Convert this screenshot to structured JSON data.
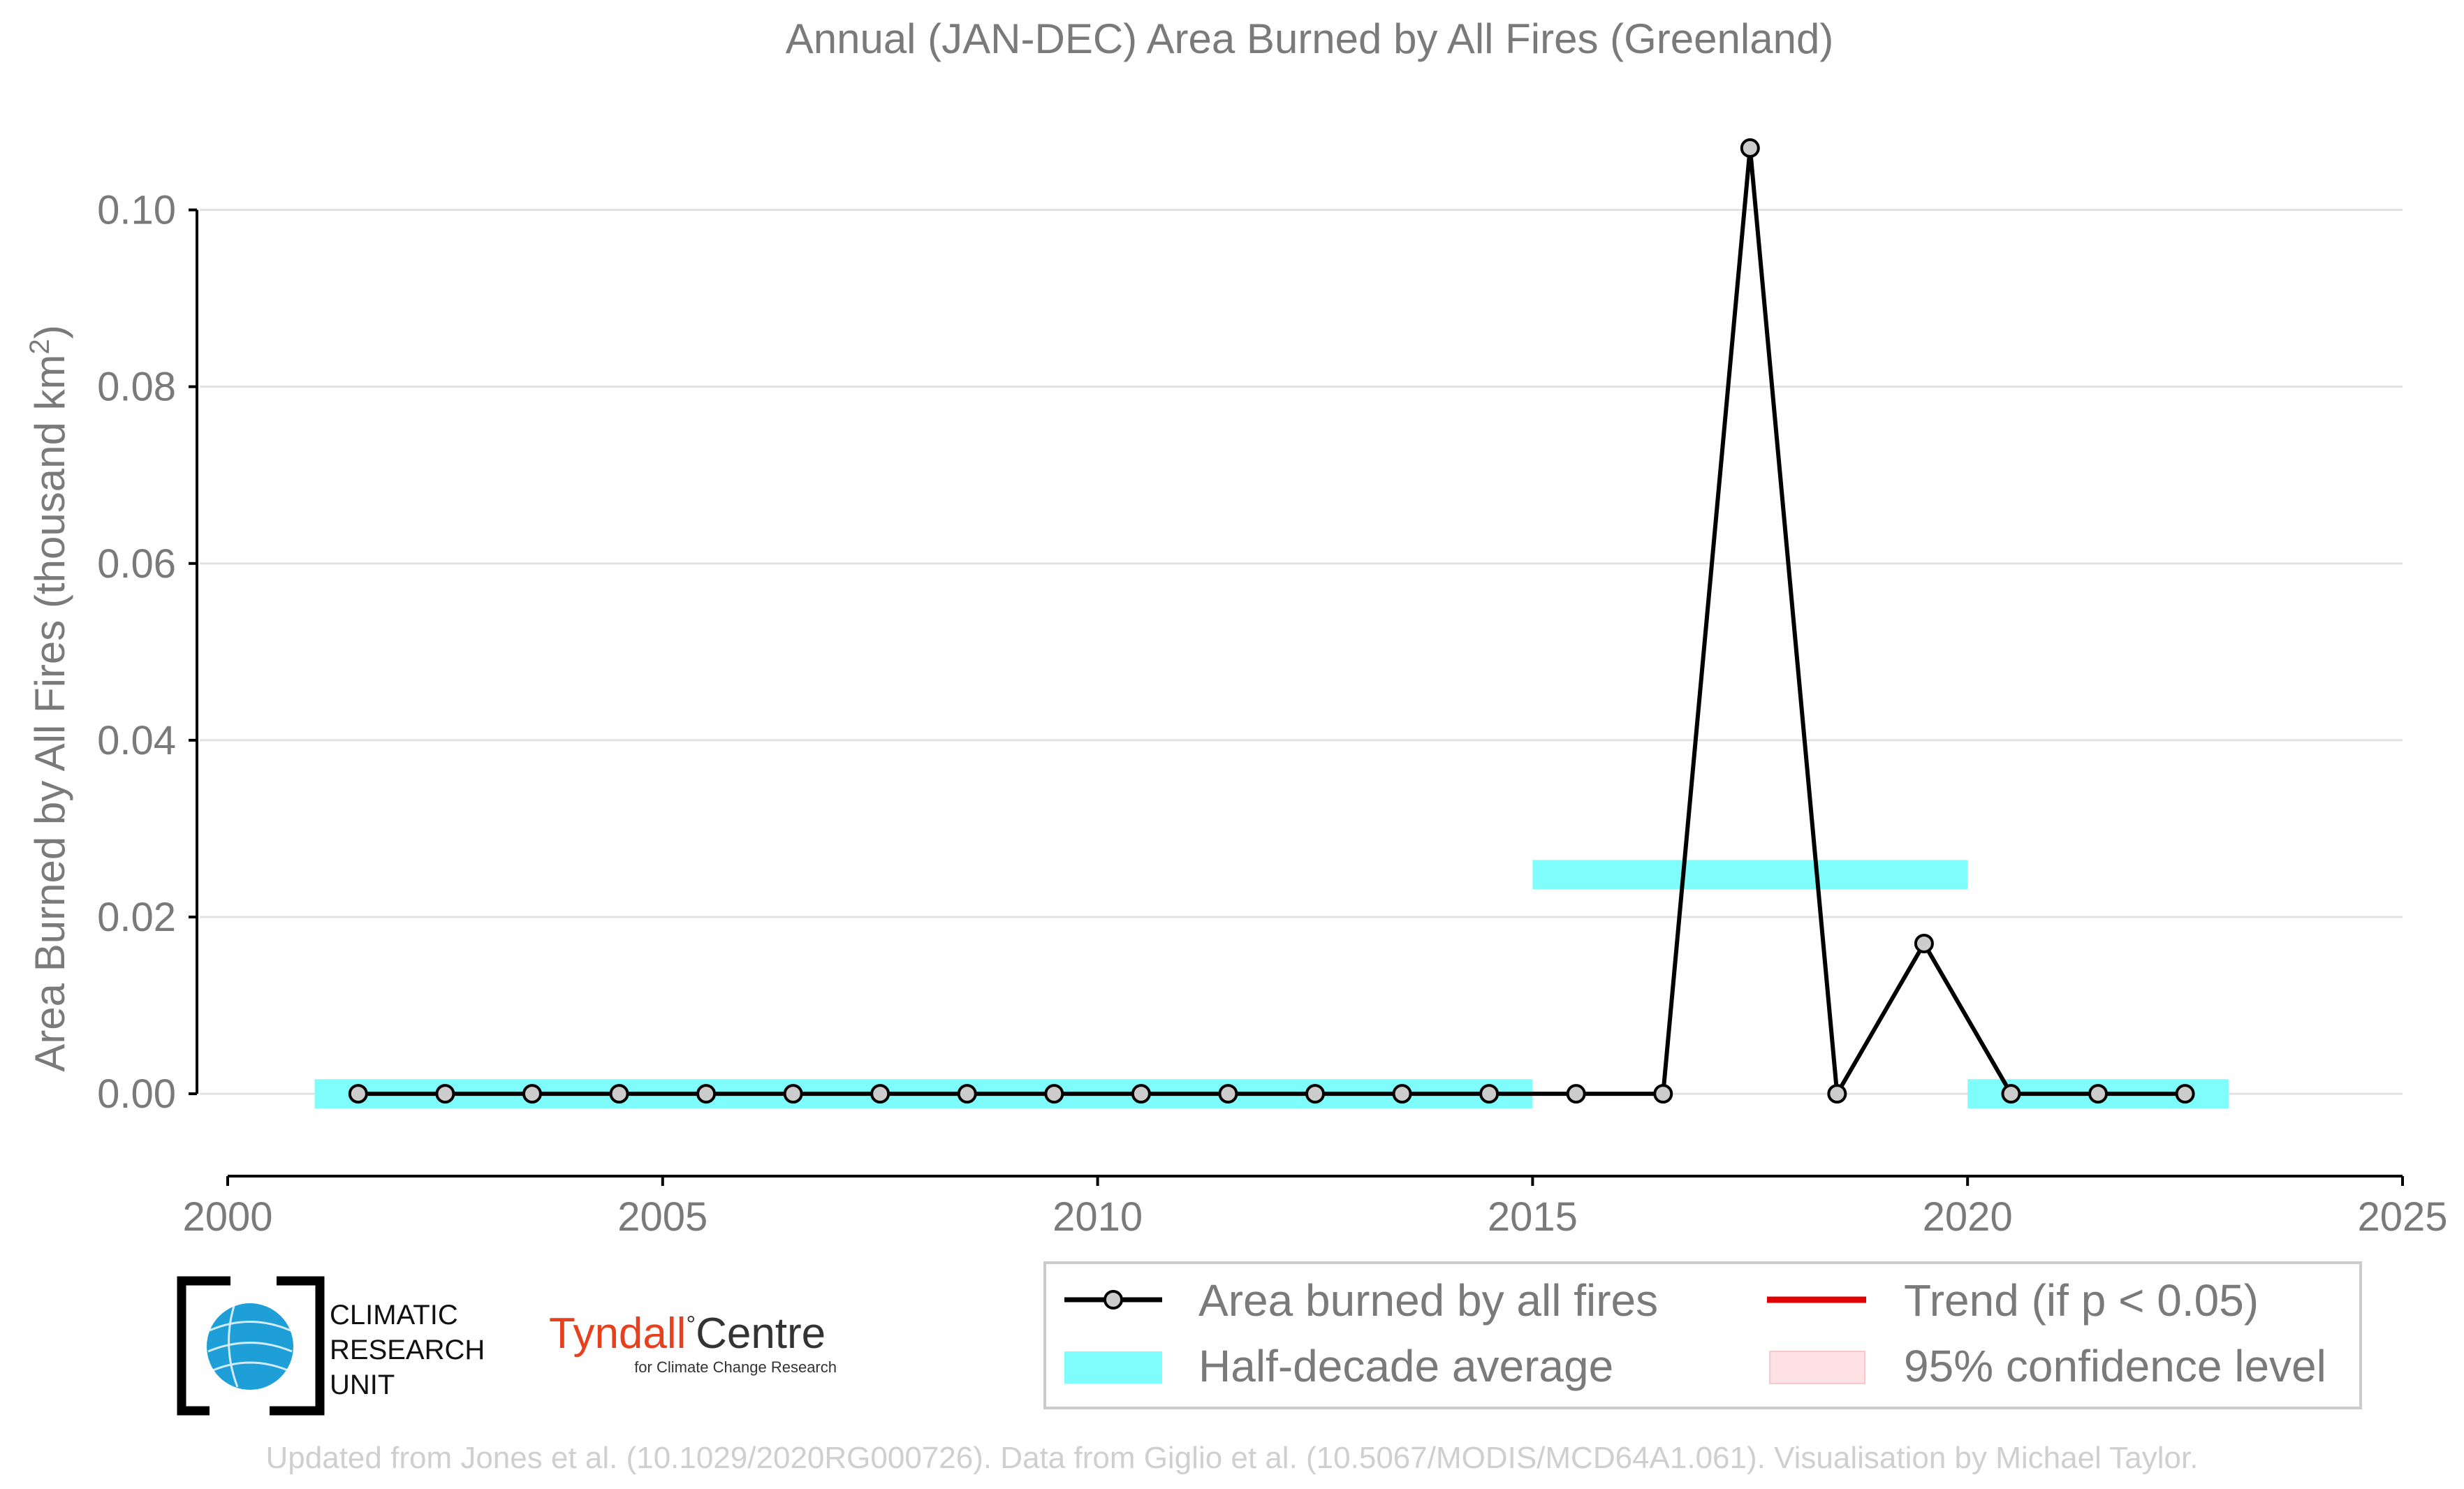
{
  "chart_data": {
    "type": "line",
    "title": "Annual (JAN-DEC) Area Burned by All Fires (Greenland)",
    "ylabel_main": "Area Burned by All Fires (thousand km",
    "ylabel_sup": "2",
    "ylabel_close": ")",
    "xlabel": "",
    "xlim": [
      2000,
      2025
    ],
    "ylim": [
      -0.009,
      0.11
    ],
    "xticks": [
      "2000",
      "2005",
      "2010",
      "2015",
      "2020",
      "2025"
    ],
    "xtick_values": [
      2000,
      2005,
      2010,
      2015,
      2020,
      2025
    ],
    "yticks": [
      "0.00",
      "0.02",
      "0.04",
      "0.06",
      "0.08",
      "0.10"
    ],
    "ytick_values": [
      0.0,
      0.02,
      0.04,
      0.06,
      0.08,
      0.1
    ],
    "grid": "horizontal",
    "series": [
      {
        "name": "Area burned by all fires",
        "color": "#000000",
        "marker_fill": "#cccccc",
        "x": [
          2001.5,
          2002.5,
          2003.5,
          2004.5,
          2005.5,
          2006.5,
          2007.5,
          2008.5,
          2009.5,
          2010.5,
          2011.5,
          2012.5,
          2013.5,
          2014.5,
          2015.5,
          2016.5,
          2017.5,
          2018.5,
          2019.5,
          2020.5,
          2021.5,
          2022.5
        ],
        "y": [
          0,
          0,
          0,
          0,
          0,
          0,
          0,
          0,
          0,
          0,
          0,
          0,
          0,
          0,
          0,
          0,
          0.107,
          0,
          0.017,
          0,
          0,
          0
        ]
      }
    ],
    "half_decade_average": {
      "name": "Half-decade average",
      "color": "#7ffcfc",
      "segments": [
        {
          "x0": 2001,
          "x1": 2015,
          "y": 0.0
        },
        {
          "x0": 2015,
          "x1": 2020,
          "y": 0.0248
        },
        {
          "x0": 2020,
          "x1": 2023,
          "y": 0.0
        }
      ]
    },
    "legend": {
      "placement": "bottom-right",
      "entries": [
        {
          "label": "Area burned by all fires",
          "kind": "line-marker",
          "color": "#000000"
        },
        {
          "label": "Trend (if p < 0.05)",
          "kind": "line",
          "color": "#e00000"
        },
        {
          "label": "Half-decade average",
          "kind": "patch",
          "color": "#7ffcfc"
        },
        {
          "label": "95% confidence level",
          "kind": "patch",
          "color": "#ffe0e3"
        }
      ]
    }
  },
  "logos": {
    "cru_line1": "CLIMATIC",
    "cru_line2": "RESEARCH",
    "cru_line3": "UNIT",
    "tyndall_main": "Tyndall",
    "tyndall_degree": "°",
    "tyndall_centre": "Centre",
    "tyndall_sub": "for Climate Change Research"
  },
  "credit": "Updated from Jones et al. (10.1029/2020RG000726). Data from Giglio et al. (10.5067/MODIS/MCD64A1.061). Visualisation by Michael Taylor."
}
